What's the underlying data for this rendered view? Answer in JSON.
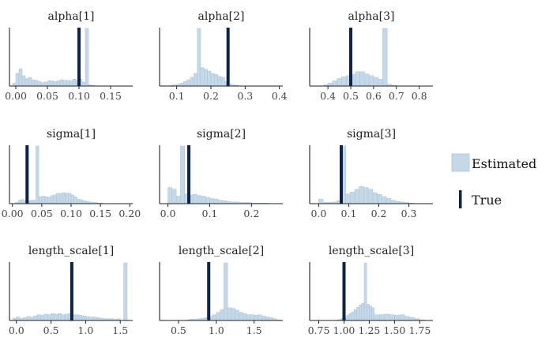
{
  "legend": {
    "estimated_label": "Estimated",
    "true_label": "True",
    "estimated_color": "#c5d8e8",
    "estimated_edge": "#a9c4db",
    "true_color": "#0b2447"
  },
  "chart_data": [
    {
      "type": "histogram",
      "title": "alpha[1]",
      "xlim": [
        -0.01,
        0.185
      ],
      "ticks": [
        0.0,
        0.05,
        0.1,
        0.15
      ],
      "tick_labels": [
        "0.00",
        "0.05",
        "0.10",
        "0.15"
      ],
      "bins": [
        [
          -0.005,
          0.0,
          0.05
        ],
        [
          0.0,
          0.005,
          0.22
        ],
        [
          0.005,
          0.01,
          0.3
        ],
        [
          0.01,
          0.015,
          0.18
        ],
        [
          0.015,
          0.02,
          0.13
        ],
        [
          0.02,
          0.025,
          0.15
        ],
        [
          0.025,
          0.03,
          0.11
        ],
        [
          0.03,
          0.035,
          0.1
        ],
        [
          0.035,
          0.04,
          0.08
        ],
        [
          0.04,
          0.045,
          0.06
        ],
        [
          0.045,
          0.05,
          0.07
        ],
        [
          0.05,
          0.055,
          0.09
        ],
        [
          0.055,
          0.06,
          0.09
        ],
        [
          0.06,
          0.065,
          0.08
        ],
        [
          0.065,
          0.07,
          0.09
        ],
        [
          0.07,
          0.075,
          0.11
        ],
        [
          0.075,
          0.08,
          0.1
        ],
        [
          0.08,
          0.085,
          0.1
        ],
        [
          0.085,
          0.09,
          0.09
        ],
        [
          0.09,
          0.095,
          0.12
        ],
        [
          0.095,
          0.1,
          0.1
        ],
        [
          0.1,
          0.105,
          0.12
        ],
        [
          0.105,
          0.11,
          0.07
        ],
        [
          0.11,
          0.115,
          1.0
        ],
        [
          0.115,
          0.12,
          0.02
        ],
        [
          0.12,
          0.125,
          0.01
        ]
      ],
      "true_value": 0.1
    },
    {
      "type": "histogram",
      "title": "alpha[2]",
      "xlim": [
        0.05,
        0.41
      ],
      "ticks": [
        0.1,
        0.2,
        0.3,
        0.4
      ],
      "tick_labels": [
        "0.1",
        "0.2",
        "0.3",
        "0.4"
      ],
      "bins": [
        [
          0.08,
          0.09,
          0.01
        ],
        [
          0.09,
          0.1,
          0.02
        ],
        [
          0.1,
          0.11,
          0.03
        ],
        [
          0.11,
          0.12,
          0.05
        ],
        [
          0.12,
          0.13,
          0.08
        ],
        [
          0.13,
          0.14,
          0.11
        ],
        [
          0.14,
          0.15,
          0.15
        ],
        [
          0.15,
          0.16,
          0.22
        ],
        [
          0.16,
          0.17,
          1.0
        ],
        [
          0.17,
          0.18,
          0.32
        ],
        [
          0.18,
          0.19,
          0.29
        ],
        [
          0.19,
          0.2,
          0.26
        ],
        [
          0.2,
          0.21,
          0.22
        ],
        [
          0.21,
          0.22,
          0.2
        ],
        [
          0.22,
          0.23,
          0.17
        ],
        [
          0.23,
          0.24,
          0.15
        ],
        [
          0.24,
          0.25,
          0.08
        ],
        [
          0.25,
          0.26,
          0.04
        ],
        [
          0.26,
          0.27,
          0.02
        ],
        [
          0.27,
          0.28,
          0.01
        ]
      ],
      "true_value": 0.25
    },
    {
      "type": "histogram",
      "title": "alpha[3]",
      "xlim": [
        0.32,
        0.86
      ],
      "ticks": [
        0.4,
        0.5,
        0.6,
        0.7,
        0.8
      ],
      "tick_labels": [
        "0.4",
        "0.5",
        "0.6",
        "0.7",
        "0.8"
      ],
      "bins": [
        [
          0.38,
          0.4,
          0.02
        ],
        [
          0.4,
          0.42,
          0.05
        ],
        [
          0.42,
          0.44,
          0.09
        ],
        [
          0.44,
          0.46,
          0.13
        ],
        [
          0.46,
          0.48,
          0.16
        ],
        [
          0.48,
          0.5,
          0.18
        ],
        [
          0.5,
          0.52,
          0.2
        ],
        [
          0.52,
          0.54,
          0.25
        ],
        [
          0.54,
          0.56,
          0.25
        ],
        [
          0.56,
          0.58,
          0.21
        ],
        [
          0.58,
          0.6,
          0.18
        ],
        [
          0.6,
          0.62,
          0.15
        ],
        [
          0.62,
          0.64,
          0.12
        ],
        [
          0.64,
          0.66,
          1.0
        ],
        [
          0.66,
          0.68,
          0.03
        ],
        [
          0.68,
          0.7,
          0.01
        ]
      ],
      "true_value": 0.5
    },
    {
      "type": "histogram",
      "title": "sigma[1]",
      "xlim": [
        -0.005,
        0.205
      ],
      "ticks": [
        0.0,
        0.05,
        0.1,
        0.15,
        0.2
      ],
      "tick_labels": [
        "0.00",
        "0.05",
        "0.10",
        "0.15",
        "0.20"
      ],
      "bins": [
        [
          0.005,
          0.01,
          0.02
        ],
        [
          0.01,
          0.015,
          0.06
        ],
        [
          0.015,
          0.02,
          0.07
        ],
        [
          0.02,
          0.025,
          0.05
        ],
        [
          0.025,
          0.03,
          0.05
        ],
        [
          0.03,
          0.035,
          0.06
        ],
        [
          0.035,
          0.04,
          0.06
        ],
        [
          0.04,
          0.045,
          1.0
        ],
        [
          0.045,
          0.05,
          0.12
        ],
        [
          0.05,
          0.055,
          0.13
        ],
        [
          0.055,
          0.06,
          0.12
        ],
        [
          0.06,
          0.065,
          0.11
        ],
        [
          0.065,
          0.07,
          0.14
        ],
        [
          0.07,
          0.075,
          0.15
        ],
        [
          0.075,
          0.08,
          0.18
        ],
        [
          0.08,
          0.085,
          0.18
        ],
        [
          0.085,
          0.09,
          0.19
        ],
        [
          0.09,
          0.095,
          0.18
        ],
        [
          0.095,
          0.1,
          0.18
        ],
        [
          0.1,
          0.105,
          0.15
        ],
        [
          0.105,
          0.11,
          0.12
        ],
        [
          0.11,
          0.115,
          0.08
        ],
        [
          0.115,
          0.12,
          0.07
        ],
        [
          0.12,
          0.125,
          0.05
        ],
        [
          0.125,
          0.13,
          0.04
        ],
        [
          0.13,
          0.135,
          0.03
        ],
        [
          0.135,
          0.14,
          0.02
        ],
        [
          0.14,
          0.145,
          0.02
        ],
        [
          0.145,
          0.15,
          0.01
        ],
        [
          0.15,
          0.155,
          0.01
        ]
      ],
      "true_value": 0.025
    },
    {
      "type": "histogram",
      "title": "sigma[2]",
      "xlim": [
        -0.02,
        0.275
      ],
      "ticks": [
        0.0,
        0.1,
        0.2
      ],
      "tick_labels": [
        "0.0",
        "0.1",
        "0.2"
      ],
      "bins": [
        [
          0.0,
          0.01,
          0.28
        ],
        [
          0.01,
          0.02,
          0.25
        ],
        [
          0.02,
          0.03,
          0.13
        ],
        [
          0.03,
          0.04,
          1.0
        ],
        [
          0.04,
          0.05,
          0.17
        ],
        [
          0.05,
          0.06,
          0.15
        ],
        [
          0.06,
          0.07,
          0.16
        ],
        [
          0.07,
          0.08,
          0.14
        ],
        [
          0.08,
          0.09,
          0.13
        ],
        [
          0.09,
          0.1,
          0.11
        ],
        [
          0.1,
          0.11,
          0.09
        ],
        [
          0.11,
          0.12,
          0.08
        ],
        [
          0.12,
          0.13,
          0.06
        ],
        [
          0.13,
          0.14,
          0.05
        ],
        [
          0.14,
          0.15,
          0.04
        ],
        [
          0.15,
          0.16,
          0.03
        ],
        [
          0.16,
          0.17,
          0.03
        ],
        [
          0.17,
          0.18,
          0.02
        ],
        [
          0.18,
          0.19,
          0.02
        ],
        [
          0.19,
          0.2,
          0.02
        ],
        [
          0.2,
          0.21,
          0.01
        ],
        [
          0.21,
          0.22,
          0.01
        ],
        [
          0.22,
          0.23,
          0.01
        ],
        [
          0.23,
          0.24,
          0.01
        ]
      ],
      "true_value": 0.05
    },
    {
      "type": "histogram",
      "title": "sigma[3]",
      "xlim": [
        -0.03,
        0.38
      ],
      "ticks": [
        0.0,
        0.1,
        0.2,
        0.3
      ],
      "tick_labels": [
        "0.0",
        "0.1",
        "0.2",
        "0.3"
      ],
      "bins": [
        [
          0.0,
          0.015,
          0.08
        ],
        [
          0.015,
          0.03,
          0.02
        ],
        [
          0.03,
          0.045,
          0.02
        ],
        [
          0.045,
          0.06,
          0.03
        ],
        [
          0.06,
          0.075,
          0.05
        ],
        [
          0.075,
          0.09,
          1.0
        ],
        [
          0.09,
          0.105,
          0.17
        ],
        [
          0.105,
          0.12,
          0.2
        ],
        [
          0.12,
          0.135,
          0.25
        ],
        [
          0.135,
          0.15,
          0.3
        ],
        [
          0.15,
          0.165,
          0.28
        ],
        [
          0.165,
          0.18,
          0.25
        ],
        [
          0.18,
          0.195,
          0.19
        ],
        [
          0.195,
          0.21,
          0.16
        ],
        [
          0.21,
          0.225,
          0.12
        ],
        [
          0.225,
          0.24,
          0.09
        ],
        [
          0.24,
          0.255,
          0.06
        ],
        [
          0.255,
          0.27,
          0.04
        ],
        [
          0.27,
          0.285,
          0.03
        ],
        [
          0.285,
          0.3,
          0.02
        ],
        [
          0.3,
          0.315,
          0.01
        ]
      ],
      "true_value": 0.075
    },
    {
      "type": "histogram",
      "title": "length_scale[1]",
      "xlim": [
        -0.1,
        1.68
      ],
      "ticks": [
        0.0,
        0.5,
        1.0,
        1.5
      ],
      "tick_labels": [
        "0.0",
        "0.5",
        "1.0",
        "1.5"
      ],
      "bins": [
        [
          -0.05,
          0.0,
          0.04
        ],
        [
          0.0,
          0.05,
          0.06
        ],
        [
          0.05,
          0.1,
          0.03
        ],
        [
          0.1,
          0.15,
          0.05
        ],
        [
          0.15,
          0.2,
          0.07
        ],
        [
          0.2,
          0.25,
          0.06
        ],
        [
          0.25,
          0.3,
          0.08
        ],
        [
          0.3,
          0.35,
          0.1
        ],
        [
          0.35,
          0.4,
          0.09
        ],
        [
          0.4,
          0.45,
          0.11
        ],
        [
          0.45,
          0.5,
          0.1
        ],
        [
          0.5,
          0.55,
          0.12
        ],
        [
          0.55,
          0.6,
          0.11
        ],
        [
          0.6,
          0.65,
          0.12
        ],
        [
          0.65,
          0.7,
          0.1
        ],
        [
          0.7,
          0.75,
          0.11
        ],
        [
          0.75,
          0.8,
          0.12
        ],
        [
          0.8,
          0.85,
          0.1
        ],
        [
          0.85,
          0.9,
          0.1
        ],
        [
          0.9,
          0.95,
          0.09
        ],
        [
          0.95,
          1.0,
          0.08
        ],
        [
          1.0,
          1.05,
          0.07
        ],
        [
          1.05,
          1.1,
          0.06
        ],
        [
          1.1,
          1.15,
          0.06
        ],
        [
          1.15,
          1.2,
          0.05
        ],
        [
          1.2,
          1.25,
          0.04
        ],
        [
          1.25,
          1.3,
          0.03
        ],
        [
          1.3,
          1.35,
          0.03
        ],
        [
          1.35,
          1.4,
          0.03
        ],
        [
          1.4,
          1.45,
          0.02
        ],
        [
          1.45,
          1.5,
          0.03
        ],
        [
          1.55,
          1.6,
          1.0
        ]
      ],
      "true_value": 0.8
    },
    {
      "type": "histogram",
      "title": "length_scale[2]",
      "xlim": [
        0.25,
        1.88
      ],
      "ticks": [
        0.5,
        1.0,
        1.5
      ],
      "tick_labels": [
        "0.5",
        "1.0",
        "1.5"
      ],
      "bins": [
        [
          0.6,
          0.65,
          0.01
        ],
        [
          0.65,
          0.7,
          0.02
        ],
        [
          0.7,
          0.75,
          0.02
        ],
        [
          0.75,
          0.8,
          0.03
        ],
        [
          0.8,
          0.85,
          0.04
        ],
        [
          0.85,
          0.9,
          0.05
        ],
        [
          0.9,
          0.95,
          0.07
        ],
        [
          0.95,
          1.0,
          0.1
        ],
        [
          1.0,
          1.05,
          0.14
        ],
        [
          1.05,
          1.1,
          0.19
        ],
        [
          1.1,
          1.15,
          1.0
        ],
        [
          1.15,
          1.2,
          0.22
        ],
        [
          1.2,
          1.25,
          0.21
        ],
        [
          1.25,
          1.3,
          0.18
        ],
        [
          1.3,
          1.35,
          0.14
        ],
        [
          1.35,
          1.4,
          0.12
        ],
        [
          1.4,
          1.45,
          0.1
        ],
        [
          1.45,
          1.5,
          0.1
        ],
        [
          1.5,
          1.55,
          0.09
        ],
        [
          1.55,
          1.6,
          0.1
        ],
        [
          1.6,
          1.65,
          0.08
        ],
        [
          1.65,
          1.7,
          0.06
        ],
        [
          1.7,
          1.75,
          0.05
        ],
        [
          1.75,
          1.8,
          0.03
        ],
        [
          1.8,
          1.85,
          0.01
        ]
      ],
      "true_value": 0.9
    },
    {
      "type": "histogram",
      "title": "length_scale[3]",
      "xlim": [
        0.66,
        1.88
      ],
      "ticks": [
        0.75,
        1.0,
        1.25,
        1.5,
        1.75
      ],
      "tick_labels": [
        "0.75",
        "1.00",
        "1.25",
        "1.50",
        "1.75"
      ],
      "bins": [
        [
          0.925,
          0.95,
          0.01
        ],
        [
          0.95,
          0.975,
          0.02
        ],
        [
          0.975,
          1.0,
          0.04
        ],
        [
          1.0,
          1.025,
          0.06
        ],
        [
          1.025,
          1.05,
          0.09
        ],
        [
          1.05,
          1.075,
          0.12
        ],
        [
          1.075,
          1.1,
          0.15
        ],
        [
          1.1,
          1.125,
          0.19
        ],
        [
          1.125,
          1.15,
          0.23
        ],
        [
          1.15,
          1.175,
          0.27
        ],
        [
          1.175,
          1.2,
          0.3
        ],
        [
          1.2,
          1.225,
          1.0
        ],
        [
          1.225,
          1.25,
          0.28
        ],
        [
          1.25,
          1.275,
          0.25
        ],
        [
          1.275,
          1.3,
          0.22
        ],
        [
          1.3,
          1.35,
          0.1
        ],
        [
          1.35,
          1.4,
          0.1
        ],
        [
          1.4,
          1.45,
          0.11
        ],
        [
          1.45,
          1.5,
          0.1
        ],
        [
          1.5,
          1.55,
          0.09
        ],
        [
          1.55,
          1.6,
          0.1
        ],
        [
          1.6,
          1.65,
          0.07
        ],
        [
          1.65,
          1.7,
          0.05
        ],
        [
          1.7,
          1.75,
          0.03
        ],
        [
          1.75,
          1.8,
          0.01
        ]
      ],
      "true_value": 1.0
    }
  ]
}
